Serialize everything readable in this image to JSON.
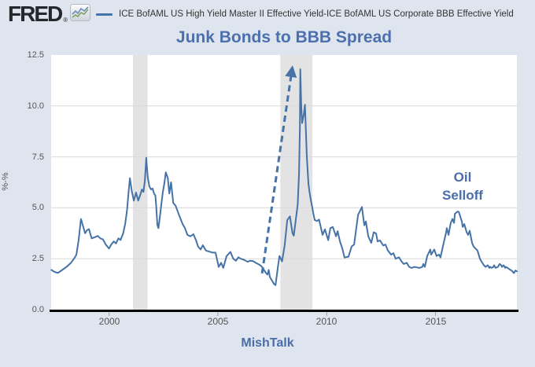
{
  "header": {
    "logo_text": "FRED",
    "logo_reg": "®",
    "legend": {
      "series_label": "ICE BofAML US High Yield Master II Effective Yield-ICE BofAML US Corporate BBB Effective Yield",
      "series_color": "#4572a7"
    }
  },
  "chart_data": {
    "type": "line",
    "title": "Junk Bonds to BBB Spread",
    "title_color": "#4c6fad",
    "ylabel": "%-%",
    "footer": "MishTalk",
    "footer_color": "#4a6da8",
    "xlim": [
      1997.34,
      2018.74
    ],
    "ylim": [
      0,
      12.5
    ],
    "x_ticks": [
      2000,
      2005,
      2010,
      2015
    ],
    "y_ticks": [
      0.0,
      2.5,
      5.0,
      7.5,
      10.0,
      12.5
    ],
    "grid": "horizontal",
    "legend_position": "top",
    "background_color": "#dfe5ee",
    "plot_background": "#ffffff",
    "grid_color": "#d9d9d9",
    "recession_band_color": "#e3e3e3",
    "axis_color": "#000000",
    "line_color": "#4572a7",
    "recession_bands": [
      [
        2001.1,
        2001.77
      ],
      [
        2007.87,
        2009.35
      ]
    ],
    "annotation": {
      "text_lines": [
        "Oil",
        "Selloff"
      ],
      "x": 2016.25,
      "y": 6.06,
      "color": "#4a6da8"
    },
    "arrow": {
      "from": [
        2007.03,
        1.78
      ],
      "to": [
        2008.42,
        11.88
      ],
      "style": "dashed",
      "color": "#4572a7"
    },
    "series": [
      {
        "name": "ICE BofAML US High Yield Master II Effective Yield-ICE BofAML US Corporate BBB Effective Yield",
        "points": [
          [
            1997.35,
            1.95
          ],
          [
            1997.5,
            1.85
          ],
          [
            1997.65,
            1.8
          ],
          [
            1997.85,
            1.95
          ],
          [
            1998.05,
            2.1
          ],
          [
            1998.25,
            2.3
          ],
          [
            1998.42,
            2.55
          ],
          [
            1998.5,
            2.7
          ],
          [
            1998.6,
            3.4
          ],
          [
            1998.71,
            4.45
          ],
          [
            1998.82,
            4.05
          ],
          [
            1998.9,
            3.75
          ],
          [
            1998.99,
            3.9
          ],
          [
            1999.08,
            3.95
          ],
          [
            1999.2,
            3.5
          ],
          [
            1999.33,
            3.55
          ],
          [
            1999.48,
            3.62
          ],
          [
            1999.6,
            3.5
          ],
          [
            1999.72,
            3.45
          ],
          [
            1999.85,
            3.2
          ],
          [
            2000.0,
            3.0
          ],
          [
            2000.1,
            3.2
          ],
          [
            2000.22,
            3.35
          ],
          [
            2000.32,
            3.25
          ],
          [
            2000.43,
            3.5
          ],
          [
            2000.53,
            3.42
          ],
          [
            2000.65,
            3.75
          ],
          [
            2000.74,
            4.2
          ],
          [
            2000.83,
            4.9
          ],
          [
            2000.9,
            5.8
          ],
          [
            2000.96,
            6.45
          ],
          [
            2001.05,
            5.8
          ],
          [
            2001.14,
            5.35
          ],
          [
            2001.24,
            5.75
          ],
          [
            2001.34,
            5.35
          ],
          [
            2001.44,
            5.65
          ],
          [
            2001.51,
            5.9
          ],
          [
            2001.58,
            5.78
          ],
          [
            2001.65,
            6.35
          ],
          [
            2001.71,
            7.45
          ],
          [
            2001.78,
            6.5
          ],
          [
            2001.85,
            6.05
          ],
          [
            2001.93,
            5.9
          ],
          [
            2002.0,
            5.95
          ],
          [
            2002.07,
            5.7
          ],
          [
            2002.13,
            5.6
          ],
          [
            2002.17,
            5.05
          ],
          [
            2002.22,
            4.15
          ],
          [
            2002.27,
            4.0
          ],
          [
            2002.33,
            4.5
          ],
          [
            2002.4,
            5.15
          ],
          [
            2002.47,
            5.75
          ],
          [
            2002.54,
            6.2
          ],
          [
            2002.61,
            6.74
          ],
          [
            2002.7,
            6.45
          ],
          [
            2002.77,
            5.7
          ],
          [
            2002.85,
            6.25
          ],
          [
            2002.95,
            5.24
          ],
          [
            2003.06,
            5.1
          ],
          [
            2003.24,
            4.58
          ],
          [
            2003.38,
            4.2
          ],
          [
            2003.49,
            4.0
          ],
          [
            2003.6,
            3.67
          ],
          [
            2003.74,
            3.6
          ],
          [
            2003.88,
            3.7
          ],
          [
            2004.0,
            3.4
          ],
          [
            2004.09,
            3.1
          ],
          [
            2004.21,
            2.95
          ],
          [
            2004.31,
            3.16
          ],
          [
            2004.45,
            2.9
          ],
          [
            2004.6,
            2.85
          ],
          [
            2004.75,
            2.8
          ],
          [
            2004.89,
            2.8
          ],
          [
            2005.04,
            2.1
          ],
          [
            2005.15,
            2.3
          ],
          [
            2005.25,
            2.05
          ],
          [
            2005.4,
            2.63
          ],
          [
            2005.58,
            2.83
          ],
          [
            2005.71,
            2.5
          ],
          [
            2005.83,
            2.4
          ],
          [
            2005.94,
            2.57
          ],
          [
            2006.05,
            2.5
          ],
          [
            2006.19,
            2.45
          ],
          [
            2006.37,
            2.35
          ],
          [
            2006.48,
            2.4
          ],
          [
            2006.62,
            2.38
          ],
          [
            2006.74,
            2.3
          ],
          [
            2006.92,
            2.2
          ],
          [
            2007.03,
            2.1
          ],
          [
            2007.21,
            1.8
          ],
          [
            2007.28,
            1.72
          ],
          [
            2007.34,
            1.95
          ],
          [
            2007.39,
            1.6
          ],
          [
            2007.58,
            1.26
          ],
          [
            2007.65,
            1.2
          ],
          [
            2007.76,
            2.11
          ],
          [
            2007.83,
            2.63
          ],
          [
            2007.95,
            2.37
          ],
          [
            2008.07,
            3.15
          ],
          [
            2008.19,
            4.39
          ],
          [
            2008.31,
            4.58
          ],
          [
            2008.43,
            3.75
          ],
          [
            2008.49,
            3.63
          ],
          [
            2008.61,
            4.67
          ],
          [
            2008.67,
            5.17
          ],
          [
            2008.73,
            6.71
          ],
          [
            2008.77,
            9.0
          ],
          [
            2008.79,
            11.8
          ],
          [
            2008.83,
            10.0
          ],
          [
            2008.87,
            9.16
          ],
          [
            2008.95,
            9.6
          ],
          [
            2009.0,
            10.06
          ],
          [
            2009.09,
            7.5
          ],
          [
            2009.16,
            6.2
          ],
          [
            2009.2,
            5.85
          ],
          [
            2009.27,
            5.4
          ],
          [
            2009.34,
            5.0
          ],
          [
            2009.38,
            4.75
          ],
          [
            2009.45,
            4.4
          ],
          [
            2009.56,
            4.35
          ],
          [
            2009.65,
            4.42
          ],
          [
            2009.81,
            3.67
          ],
          [
            2009.92,
            3.94
          ],
          [
            2010.07,
            3.41
          ],
          [
            2010.17,
            4.0
          ],
          [
            2010.28,
            4.06
          ],
          [
            2010.43,
            3.6
          ],
          [
            2010.5,
            3.85
          ],
          [
            2010.61,
            3.35
          ],
          [
            2010.72,
            3.0
          ],
          [
            2010.82,
            2.56
          ],
          [
            2011.0,
            2.6
          ],
          [
            2011.15,
            3.1
          ],
          [
            2011.26,
            3.2
          ],
          [
            2011.44,
            4.65
          ],
          [
            2011.62,
            5.04
          ],
          [
            2011.69,
            4.45
          ],
          [
            2011.73,
            4.14
          ],
          [
            2011.8,
            4.33
          ],
          [
            2011.91,
            3.6
          ],
          [
            2012.05,
            3.28
          ],
          [
            2012.16,
            3.8
          ],
          [
            2012.27,
            3.74
          ],
          [
            2012.34,
            3.35
          ],
          [
            2012.45,
            3.4
          ],
          [
            2012.6,
            3.15
          ],
          [
            2012.7,
            3.2
          ],
          [
            2012.81,
            2.9
          ],
          [
            2012.96,
            2.7
          ],
          [
            2013.07,
            2.77
          ],
          [
            2013.17,
            2.5
          ],
          [
            2013.32,
            2.57
          ],
          [
            2013.43,
            2.38
          ],
          [
            2013.54,
            2.24
          ],
          [
            2013.68,
            2.3
          ],
          [
            2013.79,
            2.1
          ],
          [
            2013.9,
            2.05
          ],
          [
            2014.04,
            2.1
          ],
          [
            2014.15,
            2.07
          ],
          [
            2014.26,
            2.05
          ],
          [
            2014.4,
            2.1
          ],
          [
            2014.44,
            2.24
          ],
          [
            2014.51,
            2.1
          ],
          [
            2014.62,
            2.63
          ],
          [
            2014.76,
            2.95
          ],
          [
            2014.8,
            2.7
          ],
          [
            2014.94,
            2.95
          ],
          [
            2015.05,
            2.63
          ],
          [
            2015.16,
            2.7
          ],
          [
            2015.23,
            2.56
          ],
          [
            2015.34,
            3.1
          ],
          [
            2015.49,
            3.8
          ],
          [
            2015.52,
            4.0
          ],
          [
            2015.6,
            3.67
          ],
          [
            2015.7,
            4.26
          ],
          [
            2015.78,
            4.45
          ],
          [
            2015.85,
            4.26
          ],
          [
            2015.89,
            4.71
          ],
          [
            2016.03,
            4.82
          ],
          [
            2016.07,
            4.8
          ],
          [
            2016.21,
            4.33
          ],
          [
            2016.25,
            4.06
          ],
          [
            2016.32,
            4.2
          ],
          [
            2016.43,
            3.8
          ],
          [
            2016.5,
            3.67
          ],
          [
            2016.57,
            3.87
          ],
          [
            2016.68,
            3.28
          ],
          [
            2016.75,
            3.1
          ],
          [
            2016.79,
            3.05
          ],
          [
            2016.93,
            2.9
          ],
          [
            2017.04,
            2.5
          ],
          [
            2017.11,
            2.37
          ],
          [
            2017.22,
            2.18
          ],
          [
            2017.3,
            2.1
          ],
          [
            2017.4,
            2.18
          ],
          [
            2017.48,
            2.05
          ],
          [
            2017.51,
            2.1
          ],
          [
            2017.58,
            2.05
          ],
          [
            2017.66,
            2.1
          ],
          [
            2017.69,
            2.18
          ],
          [
            2017.76,
            2.05
          ],
          [
            2017.87,
            2.1
          ],
          [
            2017.95,
            2.24
          ],
          [
            2018.02,
            2.18
          ],
          [
            2018.05,
            2.1
          ],
          [
            2018.13,
            2.18
          ],
          [
            2018.2,
            2.05
          ],
          [
            2018.23,
            2.1
          ],
          [
            2018.31,
            2.05
          ],
          [
            2018.38,
            2.0
          ],
          [
            2018.41,
            1.97
          ],
          [
            2018.49,
            1.92
          ],
          [
            2018.56,
            1.85
          ],
          [
            2018.6,
            1.79
          ],
          [
            2018.67,
            1.92
          ],
          [
            2018.74,
            1.88
          ]
        ]
      }
    ]
  }
}
